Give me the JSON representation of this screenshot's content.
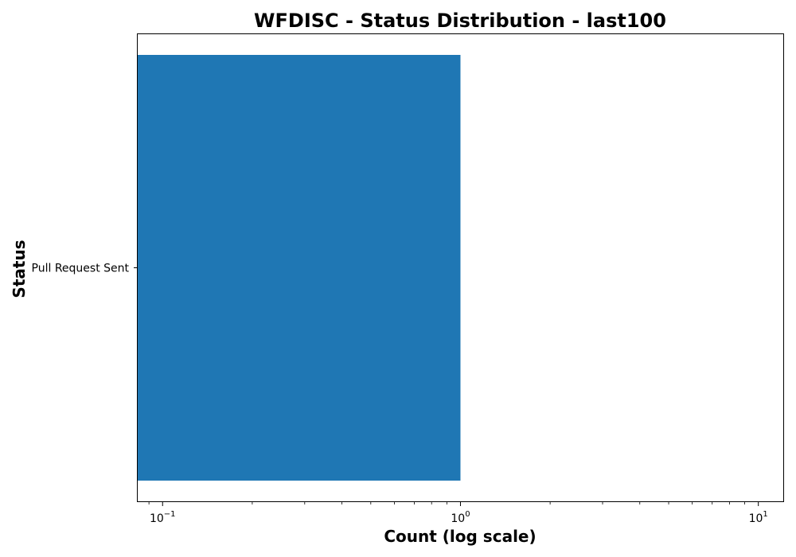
{
  "chart_data": {
    "type": "bar",
    "orientation": "horizontal",
    "title": "WFDISC - Status Distribution - last100",
    "xlabel": "Count (log scale)",
    "ylabel": "Status",
    "x_scale": "log",
    "xlim": [
      0.082,
      12.2
    ],
    "x_ticks": [
      {
        "value": 0.1,
        "base": "10",
        "exponent": "−1"
      },
      {
        "value": 1,
        "base": "10",
        "exponent": "0"
      },
      {
        "value": 10,
        "base": "10",
        "exponent": "1"
      }
    ],
    "categories": [
      "Pull Request Sent"
    ],
    "values": [
      1
    ],
    "bar_color": "#1f77b4",
    "grid": false,
    "legend": "none"
  }
}
